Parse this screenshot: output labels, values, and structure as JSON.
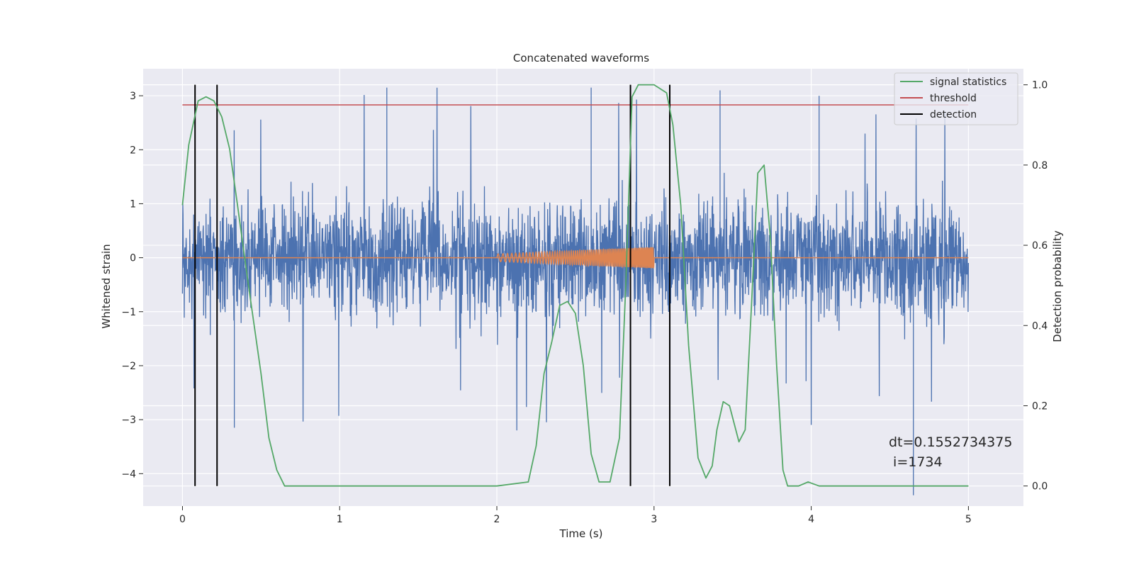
{
  "chart_data": {
    "type": "line",
    "title": "Concatenated waveforms",
    "xlabel": "Time (s)",
    "ylabel": "Whitened strain",
    "y2label": "Detection probability",
    "xlim": [
      -0.25,
      5.35
    ],
    "ylim": [
      -4.6,
      3.5
    ],
    "y2lim": [
      -0.05,
      1.04
    ],
    "xticks": [
      0,
      1,
      2,
      3,
      4,
      5
    ],
    "xtick_labels": [
      "0",
      "1",
      "2",
      "3",
      "4",
      "5"
    ],
    "yticks": [
      -4,
      -3,
      -2,
      -1,
      0,
      1,
      2,
      3
    ],
    "ytick_labels": [
      "−4",
      "−3",
      "−2",
      "−1",
      "0",
      "1",
      "2",
      "3"
    ],
    "y2ticks": [
      0.0,
      0.2,
      0.4,
      0.6,
      0.8,
      1.0
    ],
    "y2tick_labels": [
      "0.0",
      "0.2",
      "0.4",
      "0.6",
      "0.8",
      "1.0"
    ],
    "grid": true,
    "legend_position": "top-right",
    "background_color": "#eaeaf2",
    "series": [
      {
        "name": "whitened strain noise",
        "axis": "left",
        "color": "#4c72b0",
        "x_range": [
          0,
          5
        ],
        "envelope_typical": [
          -1.3,
          1.4
        ],
        "max": 3.15,
        "min": -4.4
      },
      {
        "name": "injected waveform",
        "axis": "left",
        "color": "#dd8452",
        "x_range": [
          2.0,
          3.0
        ],
        "amplitude_range": [
          0.07,
          0.2
        ]
      },
      {
        "name": "signal statistics",
        "axis": "right",
        "color": "#55a868",
        "x": [
          0.0,
          0.04,
          0.1,
          0.15,
          0.2,
          0.25,
          0.3,
          0.35,
          0.42,
          0.5,
          0.55,
          0.6,
          0.65,
          1.0,
          2.0,
          2.2,
          2.25,
          2.3,
          2.35,
          2.4,
          2.45,
          2.5,
          2.55,
          2.6,
          2.65,
          2.72,
          2.78,
          2.82,
          2.86,
          2.9,
          3.0,
          3.08,
          3.12,
          3.17,
          3.22,
          3.28,
          3.33,
          3.37,
          3.4,
          3.44,
          3.48,
          3.54,
          3.58,
          3.62,
          3.66,
          3.7,
          3.74,
          3.78,
          3.82,
          3.85,
          3.92,
          3.98,
          4.05,
          4.2,
          5.0
        ],
        "y": [
          0.7,
          0.85,
          0.96,
          0.97,
          0.96,
          0.92,
          0.84,
          0.7,
          0.5,
          0.28,
          0.12,
          0.04,
          0.0,
          0.0,
          0.0,
          0.01,
          0.1,
          0.28,
          0.36,
          0.45,
          0.46,
          0.43,
          0.3,
          0.08,
          0.01,
          0.01,
          0.12,
          0.5,
          0.97,
          1.0,
          1.0,
          0.98,
          0.9,
          0.7,
          0.35,
          0.07,
          0.02,
          0.05,
          0.14,
          0.21,
          0.2,
          0.11,
          0.14,
          0.45,
          0.78,
          0.8,
          0.62,
          0.3,
          0.04,
          0.0,
          0.0,
          0.01,
          0.0,
          0.0,
          0.0
        ]
      },
      {
        "name": "threshold",
        "axis": "right",
        "color": "#c44e52",
        "x": [
          0,
          5
        ],
        "y": [
          0.95,
          0.95
        ]
      },
      {
        "name": "detection",
        "axis": "right",
        "color": "#000000",
        "vlines": [
          0.08,
          0.22,
          2.85,
          3.1
        ],
        "ymin": 0.0,
        "ymax": 1.0
      }
    ],
    "legend": [
      {
        "label": "signal statistics",
        "color": "#55a868"
      },
      {
        "label": "threshold",
        "color": "#c44e52"
      },
      {
        "label": "detection",
        "color": "#000000"
      }
    ],
    "annotations": {
      "line1": "dt=0.1552734375",
      "line2": " i=1734"
    }
  }
}
